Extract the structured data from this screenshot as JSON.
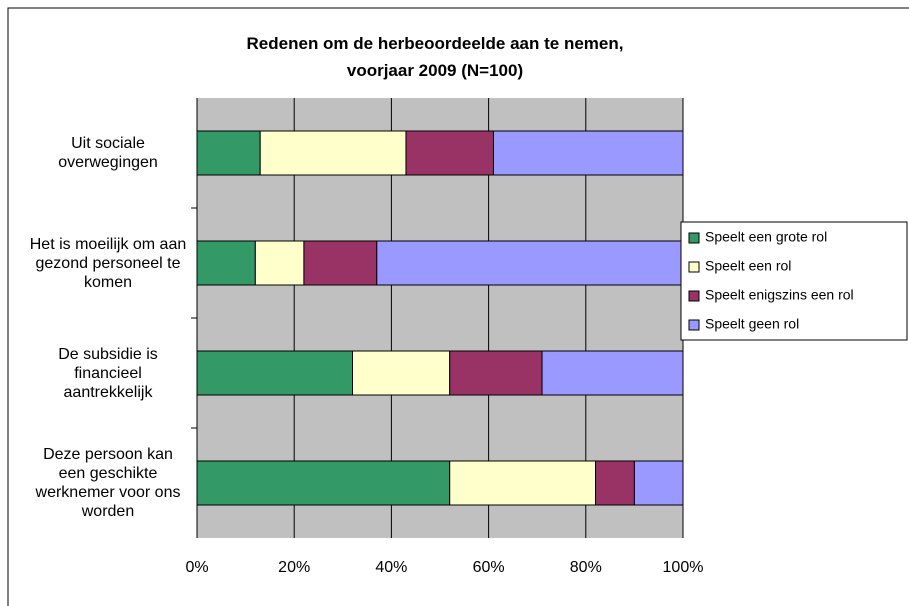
{
  "chart_data": {
    "type": "stacked_bar_horizontal",
    "title": "Redenen om de herbeoordeelde aan te nemen, voorjaar 2009 (N=100)",
    "categories": [
      "Uit sociale overwegingen",
      "Het is moeilijk om aan gezond personeel te komen",
      "De subsidie is financieel aantrekkelijk",
      "Deze persoon kan een geschikte werknemer voor ons worden"
    ],
    "series": [
      {
        "name": "Speelt een grote rol",
        "color": "#339966",
        "values": [
          13,
          12,
          32,
          52
        ]
      },
      {
        "name": "Speelt een rol",
        "color": "#ffffcc",
        "values": [
          30,
          10,
          20,
          30
        ]
      },
      {
        "name": "Speelt enigszins een rol",
        "color": "#993366",
        "values": [
          18,
          15,
          19,
          8
        ]
      },
      {
        "name": "Speelt geen rol",
        "color": "#9999ff",
        "values": [
          39,
          63,
          29,
          10
        ]
      }
    ],
    "xlim": [
      0,
      100
    ],
    "xticks": [
      {
        "value": 0,
        "label": "0%"
      },
      {
        "value": 20,
        "label": "20%"
      },
      {
        "value": 40,
        "label": "40%"
      },
      {
        "value": 60,
        "label": "60%"
      },
      {
        "value": 80,
        "label": "80%"
      },
      {
        "value": 100,
        "label": "100%"
      }
    ],
    "grid": true,
    "legend": "right"
  }
}
